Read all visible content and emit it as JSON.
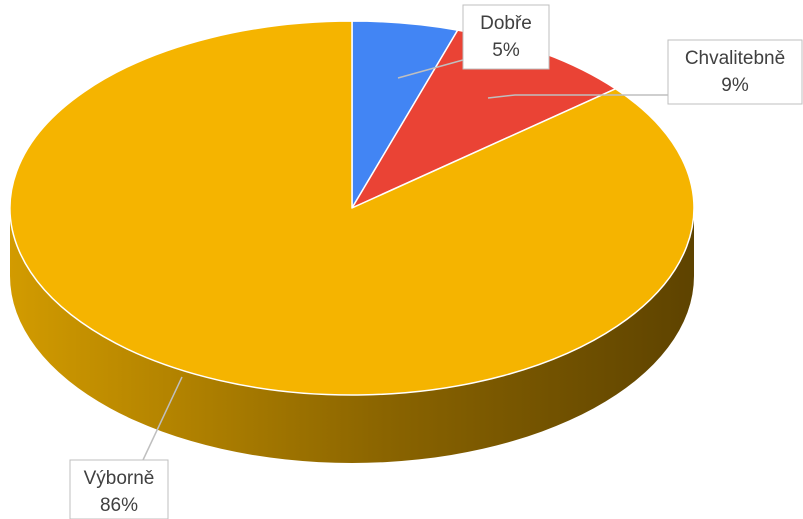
{
  "chart_data": {
    "type": "pie",
    "title": "",
    "style": "3d-pie",
    "legend": "none",
    "slices": [
      {
        "label": "Dobře",
        "value": 5,
        "display": "5%",
        "color": "#4285f4",
        "side_color": "#2f5fae"
      },
      {
        "label": "Chvalitebně",
        "value": 9,
        "display": "9%",
        "color": "#ea4335",
        "side_color": "#a82f26"
      },
      {
        "label": "Výborně",
        "value": 86,
        "display": "86%",
        "color": "#f5b400",
        "side_color": "#b98800"
      }
    ]
  }
}
